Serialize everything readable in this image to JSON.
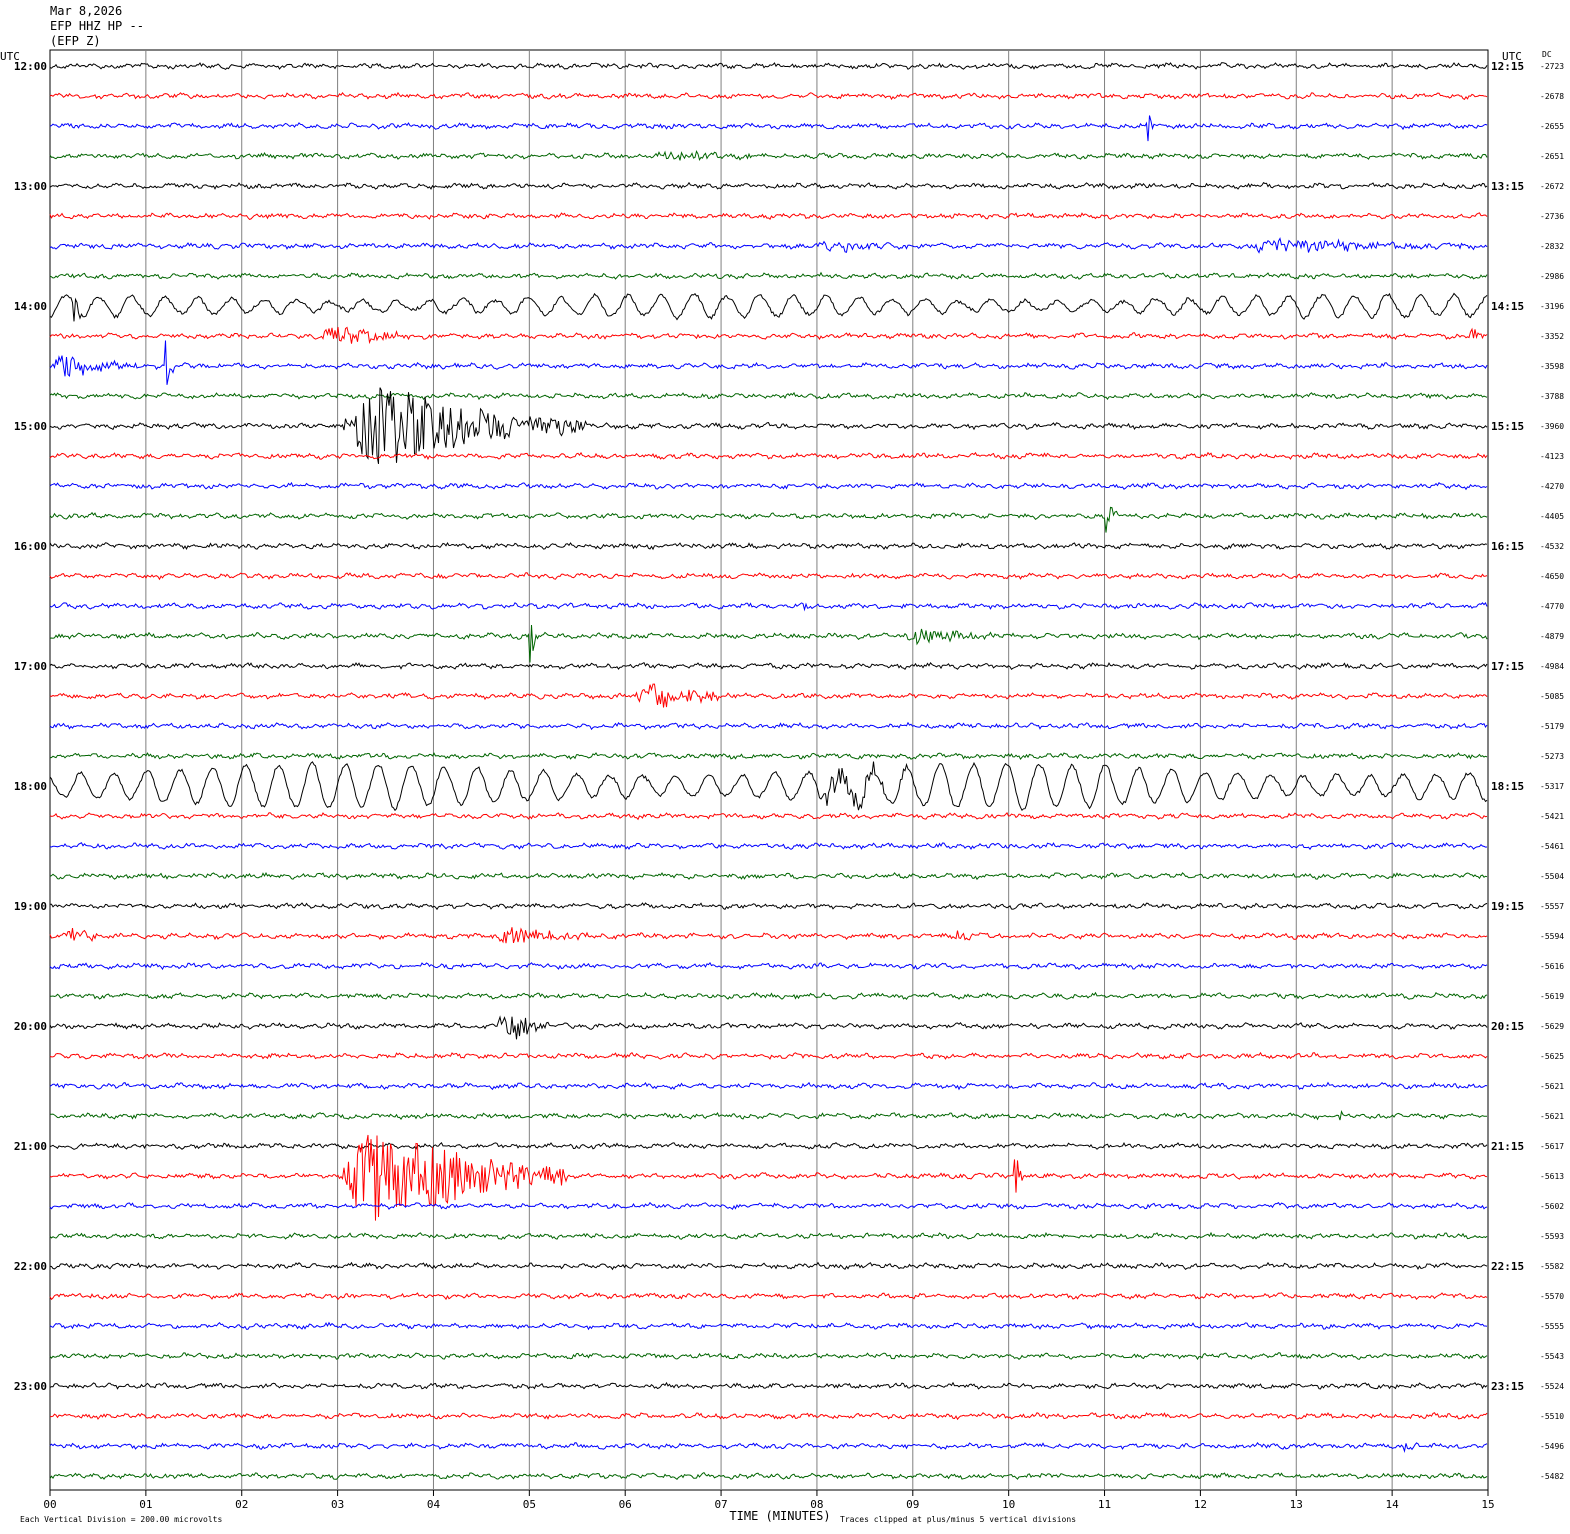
{
  "header": {
    "date": "Mar 8,2026",
    "station": "EFP HHZ HP --",
    "component": "(EFP Z)"
  },
  "chart_data": {
    "type": "line",
    "title": "",
    "xlabel": "TIME (MINUTES)",
    "x_ticks": [
      "00",
      "01",
      "02",
      "03",
      "04",
      "05",
      "06",
      "07",
      "08",
      "09",
      "10",
      "11",
      "12",
      "13",
      "14",
      "15"
    ],
    "xlim": [
      0,
      15
    ],
    "left_axis_label": "UTC",
    "right_axis_label": "UTC",
    "dc_label": "DC",
    "left_hour_labels": [
      "12:00",
      "13:00",
      "14:00",
      "15:00",
      "16:00",
      "17:00",
      "18:00",
      "19:00",
      "20:00",
      "21:00",
      "22:00",
      "23:00"
    ],
    "right_hour_labels": [
      "12:15",
      "13:15",
      "14:15",
      "15:15",
      "16:15",
      "17:15",
      "18:15",
      "19:15",
      "20:15",
      "21:15",
      "22:15",
      "23:15"
    ],
    "trace_colors": [
      "#000000",
      "#ff0000",
      "#0000ff",
      "#006400"
    ],
    "dc_offsets": [
      "-2723",
      "-2678",
      "-2655",
      "-2651",
      "-2672",
      "-2736",
      "-2832",
      "-2986",
      "-3196",
      "-3352",
      "-3598",
      "-3788",
      "-3960",
      "-4123",
      "-4270",
      "-4405",
      "-4532",
      "-4650",
      "-4770",
      "-4879",
      "-4984",
      "-5085",
      "-5179",
      "-5273",
      "-5317",
      "-5421",
      "-5461",
      "-5504",
      "-5557",
      "-5594",
      "-5616",
      "-5619",
      "-5629",
      "-5625",
      "-5621",
      "-5621",
      "-5617",
      "-5613",
      "-5602",
      "-5593",
      "-5582",
      "-5570",
      "-5555",
      "-5543",
      "-5524",
      "-5510",
      "-5496",
      "-5482"
    ],
    "grid": "vertical",
    "footer_left": "Each Vertical Division =  200.00 microvolts",
    "footer_right": "Traces clipped at plus/minus 5 vertical divisions",
    "events": [
      {
        "trace": 2,
        "start_min": 11.45,
        "dur_min": 0.15,
        "amp": 20,
        "kind": "spike"
      },
      {
        "trace": 3,
        "start_min": 6.3,
        "dur_min": 1.2,
        "amp": 7,
        "kind": "burst"
      },
      {
        "trace": 6,
        "start_min": 8.0,
        "dur_min": 1.0,
        "amp": 9,
        "kind": "burst"
      },
      {
        "trace": 6,
        "start_min": 12.4,
        "dur_min": 2.5,
        "amp": 11,
        "kind": "burst"
      },
      {
        "trace": 8,
        "start_min": 0.0,
        "dur_min": 15.0,
        "amp": 11,
        "kind": "swell"
      },
      {
        "trace": 8,
        "start_min": 0.25,
        "dur_min": 0.2,
        "amp": 18,
        "kind": "spike"
      },
      {
        "trace": 9,
        "start_min": 2.8,
        "dur_min": 1.0,
        "amp": 16,
        "kind": "burst"
      },
      {
        "trace": 9,
        "start_min": 14.8,
        "dur_min": 0.2,
        "amp": 10,
        "kind": "burst"
      },
      {
        "trace": 10,
        "start_min": 0.0,
        "dur_min": 0.9,
        "amp": 20,
        "kind": "burst"
      },
      {
        "trace": 10,
        "start_min": 1.2,
        "dur_min": 0.15,
        "amp": 55,
        "kind": "spike"
      },
      {
        "trace": 12,
        "start_min": 3.0,
        "dur_min": 2.6,
        "amp": 60,
        "kind": "burst"
      },
      {
        "trace": 15,
        "start_min": 11.0,
        "dur_min": 0.2,
        "amp": 45,
        "kind": "spike"
      },
      {
        "trace": 18,
        "start_min": 7.85,
        "dur_min": 0.12,
        "amp": 28,
        "kind": "spike"
      },
      {
        "trace": 19,
        "start_min": 5.0,
        "dur_min": 0.2,
        "amp": 30,
        "kind": "spike"
      },
      {
        "trace": 19,
        "start_min": 8.9,
        "dur_min": 1.0,
        "amp": 12,
        "kind": "burst"
      },
      {
        "trace": 21,
        "start_min": 6.1,
        "dur_min": 1.0,
        "amp": 22,
        "kind": "burst"
      },
      {
        "trace": 24,
        "start_min": 0.0,
        "dur_min": 15.0,
        "amp": 22,
        "kind": "swell"
      },
      {
        "trace": 24,
        "start_min": 8.0,
        "dur_min": 1.1,
        "amp": 20,
        "kind": "burst"
      },
      {
        "trace": 29,
        "start_min": 0.1,
        "dur_min": 0.5,
        "amp": 12,
        "kind": "burst"
      },
      {
        "trace": 29,
        "start_min": 4.6,
        "dur_min": 1.0,
        "amp": 14,
        "kind": "burst"
      },
      {
        "trace": 29,
        "start_min": 9.4,
        "dur_min": 0.5,
        "amp": 9,
        "kind": "burst"
      },
      {
        "trace": 32,
        "start_min": 4.65,
        "dur_min": 0.6,
        "amp": 30,
        "kind": "burst"
      },
      {
        "trace": 35,
        "start_min": 13.45,
        "dur_min": 0.1,
        "amp": 9,
        "kind": "spike"
      },
      {
        "trace": 37,
        "start_min": 3.0,
        "dur_min": 2.4,
        "amp": 75,
        "kind": "burst"
      },
      {
        "trace": 37,
        "start_min": 10.05,
        "dur_min": 0.15,
        "amp": 55,
        "kind": "spike"
      },
      {
        "trace": 46,
        "start_min": 14.1,
        "dur_min": 0.25,
        "amp": 9,
        "kind": "burst"
      }
    ]
  }
}
